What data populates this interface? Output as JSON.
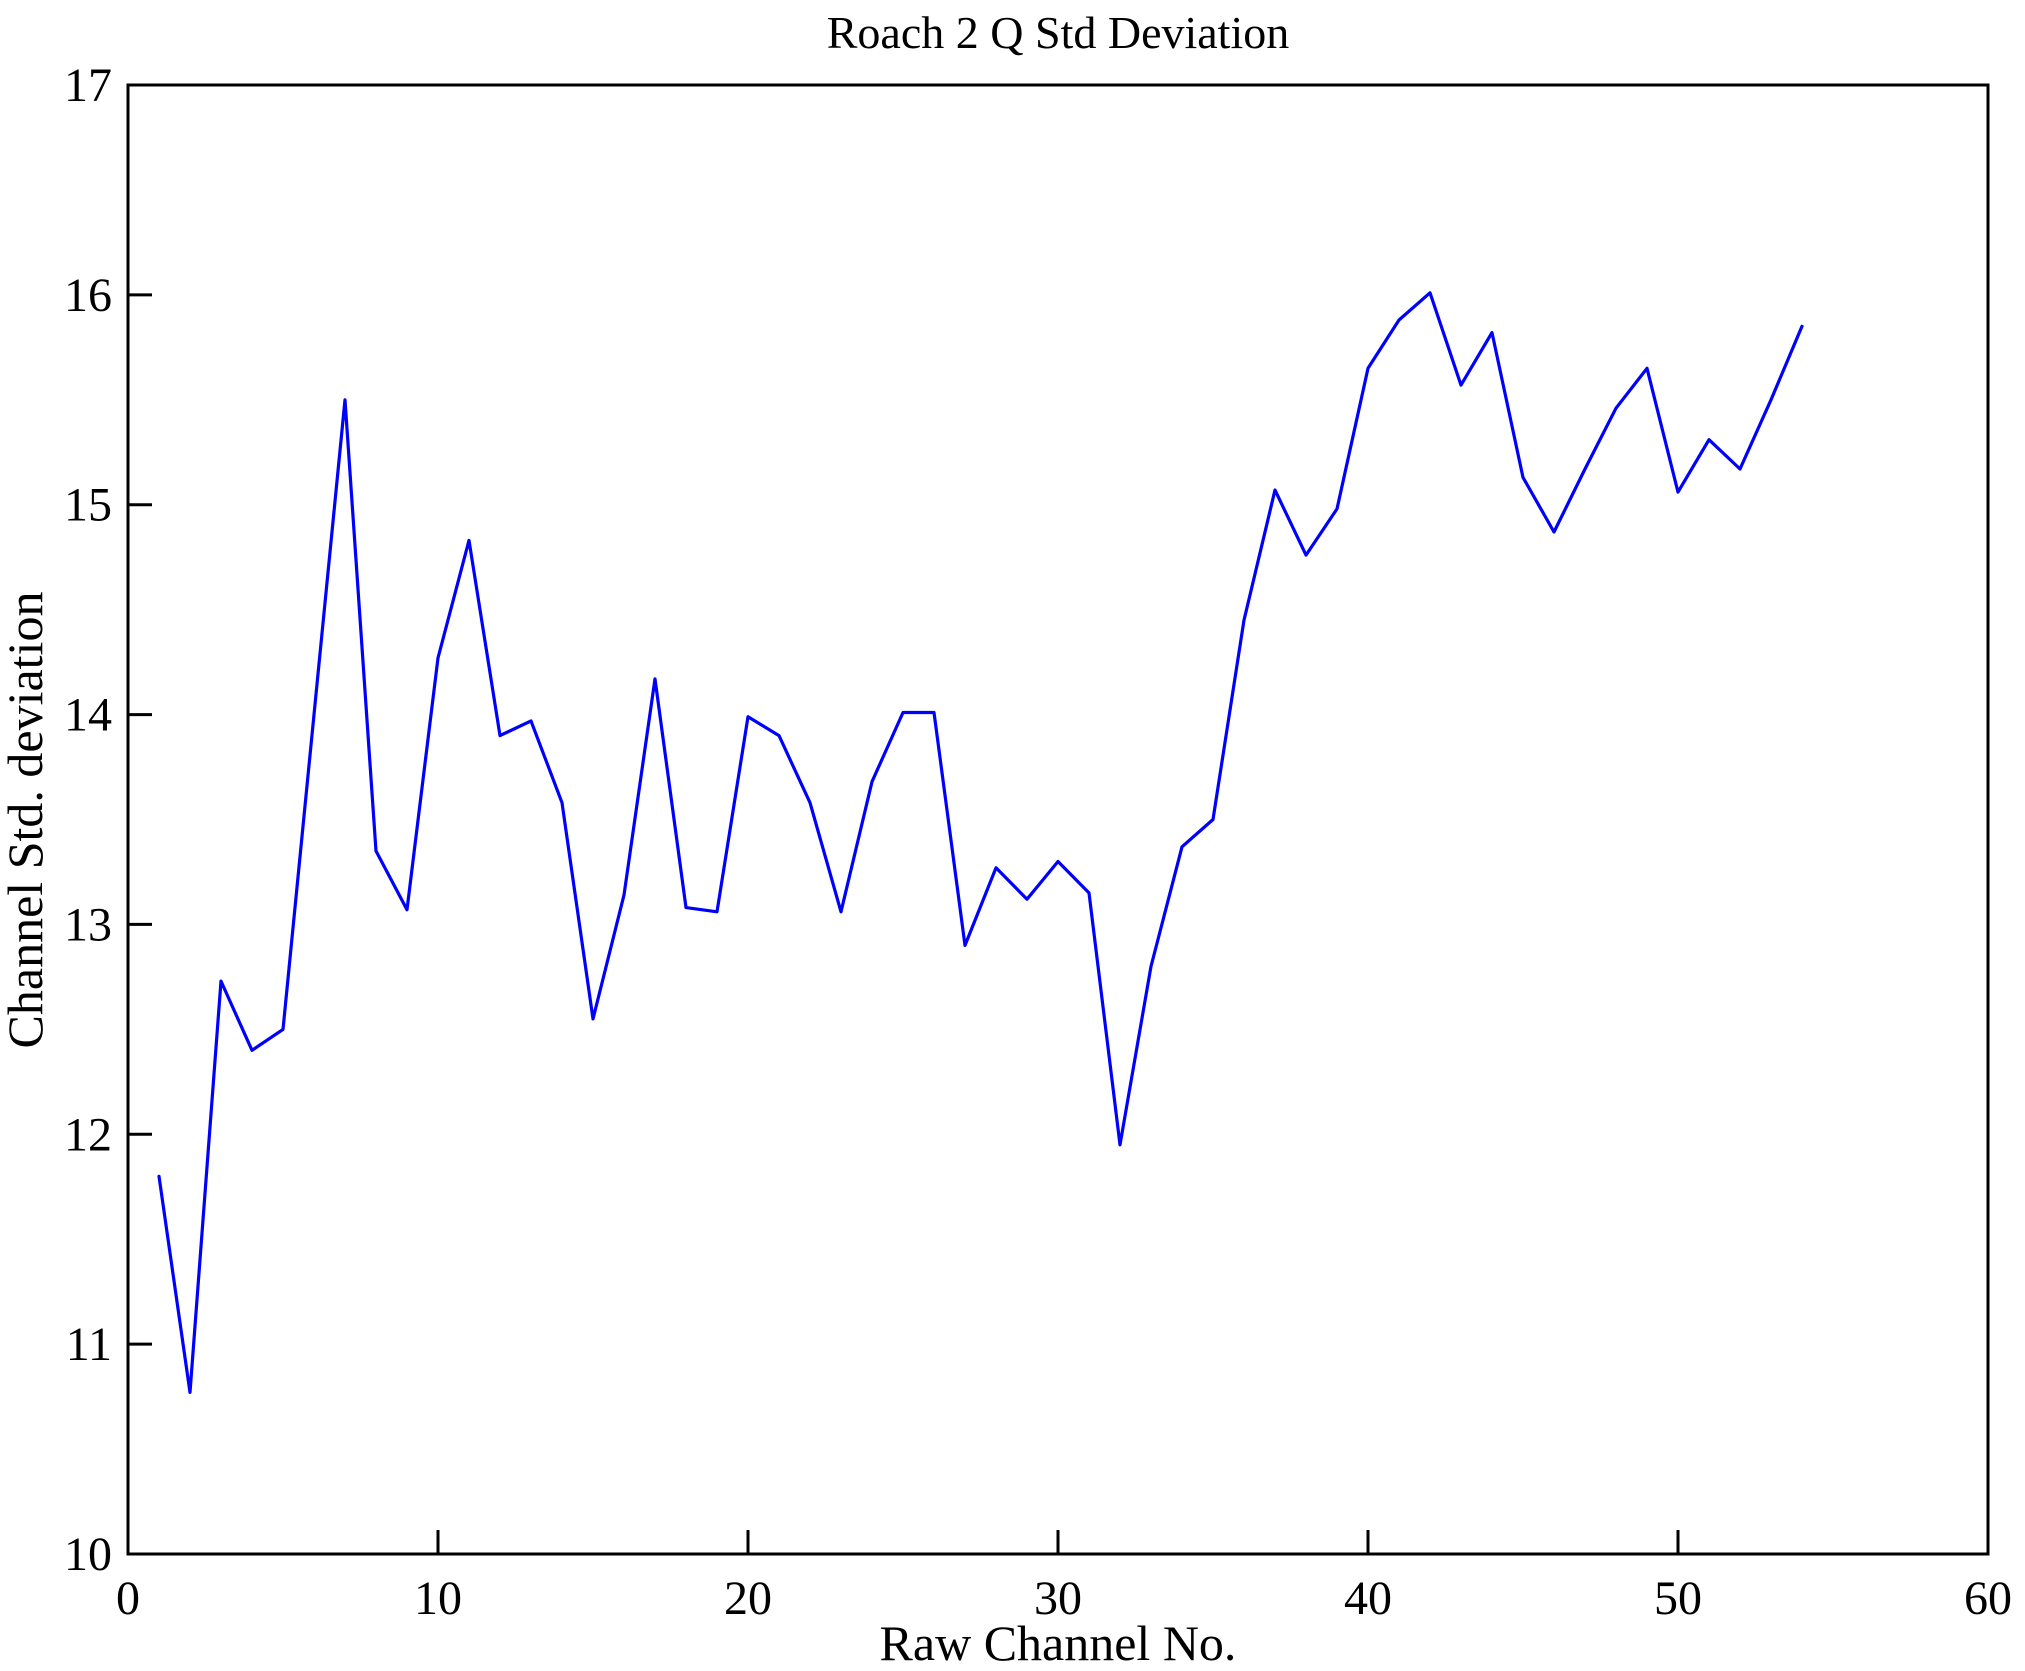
{
  "chart_data": {
    "type": "line",
    "title": "Roach 2 Q Std Deviation",
    "xlabel": "Raw Channel No.",
    "ylabel": "Channel Std. deviation",
    "xlim": [
      0,
      60
    ],
    "ylim": [
      10,
      17
    ],
    "xticks": [
      0,
      10,
      20,
      30,
      40,
      50,
      60
    ],
    "yticks": [
      10,
      11,
      12,
      13,
      14,
      15,
      16,
      17
    ],
    "grid": false,
    "legend_position": "none",
    "line_color": "#0000FF",
    "axis_color": "#000000",
    "background_color": "#FFFFFF",
    "x": [
      1,
      2,
      3,
      4,
      5,
      6,
      7,
      8,
      9,
      10,
      11,
      12,
      13,
      14,
      15,
      16,
      17,
      18,
      19,
      20,
      21,
      22,
      23,
      24,
      25,
      26,
      27,
      28,
      29,
      30,
      31,
      32,
      33,
      34,
      35,
      36,
      37,
      38,
      39,
      40,
      41,
      42,
      43,
      44,
      45,
      46,
      47,
      48,
      49,
      50,
      51,
      52,
      53,
      54
    ],
    "y": [
      11.8,
      10.77,
      12.73,
      12.4,
      12.5,
      14.0,
      15.5,
      13.35,
      13.07,
      14.27,
      14.83,
      13.9,
      13.97,
      13.58,
      12.55,
      13.14,
      14.17,
      13.08,
      13.06,
      13.99,
      13.9,
      13.58,
      13.06,
      13.68,
      14.01,
      14.01,
      12.9,
      13.27,
      13.12,
      13.3,
      13.15,
      11.95,
      12.8,
      13.37,
      13.5,
      14.45,
      15.07,
      14.76,
      14.98,
      15.65,
      15.88,
      16.01,
      15.57,
      15.82,
      15.13,
      14.87,
      15.17,
      15.46,
      15.65,
      15.06,
      15.31,
      15.17,
      15.5,
      15.85
    ]
  }
}
